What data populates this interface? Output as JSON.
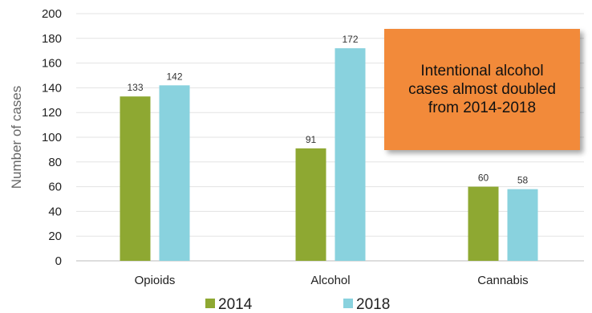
{
  "chart_data": {
    "type": "bar",
    "ylabel": "Number of cases",
    "xlabel": "",
    "ylim": [
      0,
      200
    ],
    "yticks": [
      0,
      20,
      40,
      60,
      80,
      100,
      120,
      140,
      160,
      180,
      200
    ],
    "grid": true,
    "legend_position": "bottom",
    "categories": [
      "Opioids",
      "Alcohol",
      "Cannabis"
    ],
    "series": [
      {
        "name": "2014",
        "values": [
          133,
          91,
          60
        ],
        "color": "#8ea832"
      },
      {
        "name": "2018",
        "values": [
          142,
          172,
          58
        ],
        "color": "#89d2de"
      }
    ],
    "annotation": "Intentional alcohol cases almost doubled from 2014-2018",
    "annotation_color": "#f28a3a"
  }
}
